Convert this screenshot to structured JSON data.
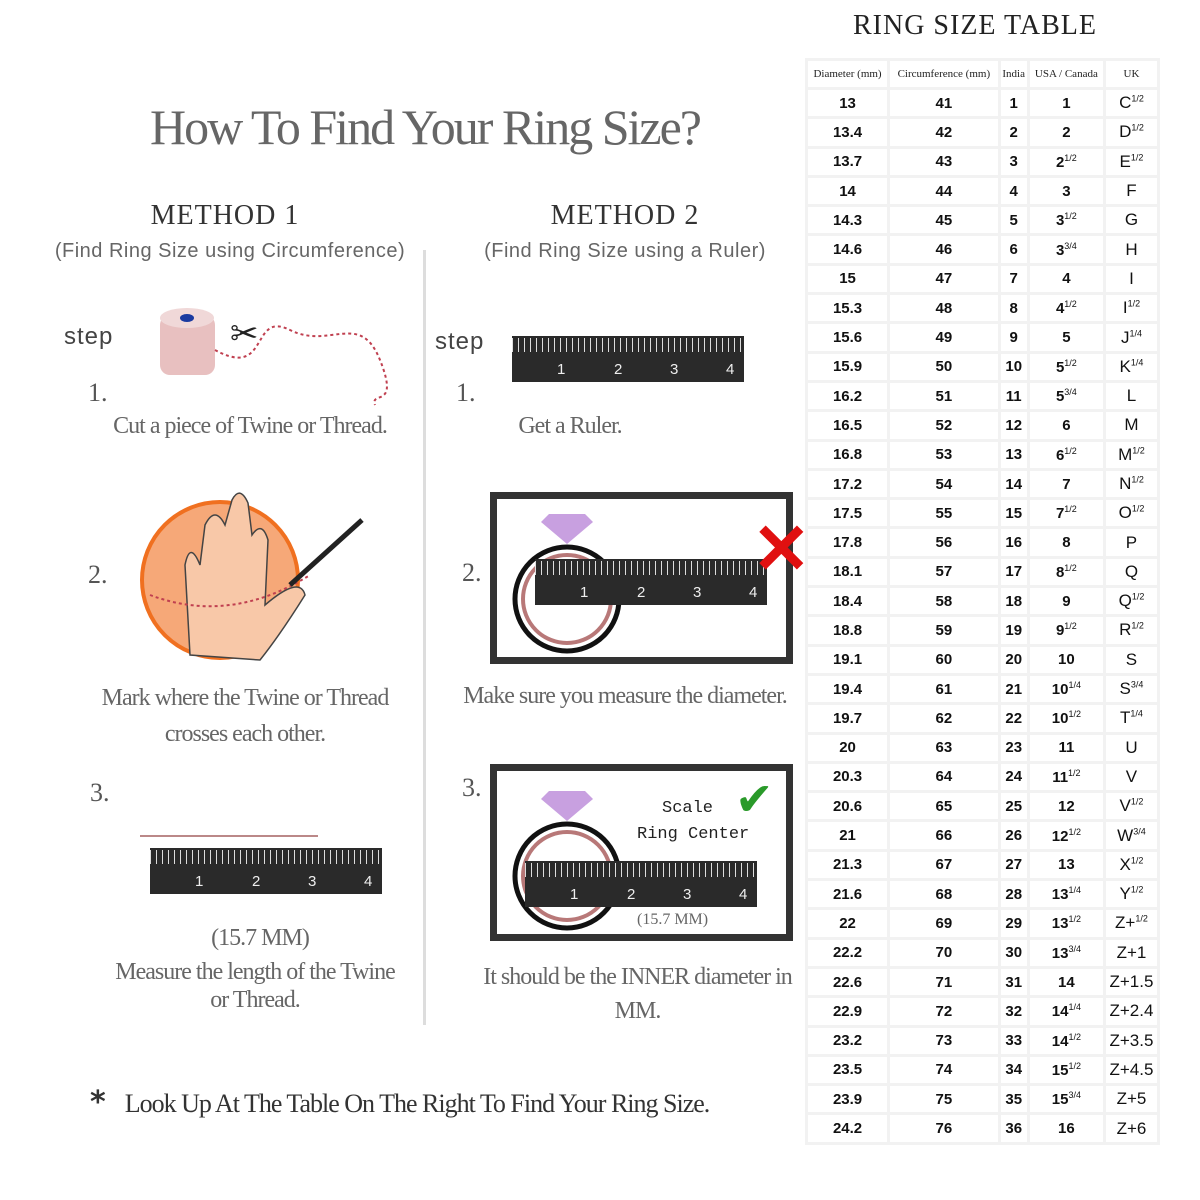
{
  "title": "How To Find Your Ring Size?",
  "method1": {
    "heading": "METHOD 1",
    "subheading": "(Find Ring Size using Circumference)",
    "step_label": "step",
    "steps": [
      {
        "num": "1.",
        "text": "Cut a piece of  Twine or Thread."
      },
      {
        "num": "2.",
        "text": "Mark where the Twine or Thread crosses each other."
      },
      {
        "num": "3.",
        "measure": "(15.7 MM)",
        "text": "Measure the length of the Twine or Thread."
      }
    ]
  },
  "method2": {
    "heading": "METHOD 2",
    "subheading": "(Find Ring Size using a Ruler)",
    "step_label": "step",
    "steps": [
      {
        "num": "1.",
        "text": "Get a Ruler."
      },
      {
        "num": "2.",
        "text": "Make sure you measure the diameter."
      },
      {
        "num": "3.",
        "scale_label": "Scale",
        "ring_center_label": "Ring Center",
        "measure": "(15.7 MM)",
        "text": "It should be the INNER diameter in MM."
      }
    ]
  },
  "ruler_labels": [
    "1",
    "2",
    "3",
    "4"
  ],
  "footer": {
    "bullet": "*",
    "text": "Look Up  At The Table On The Right To Find Your Ring Size."
  },
  "table": {
    "title": "RING SIZE TABLE",
    "headers": [
      "Diameter (mm)",
      "Circumference (mm)",
      "India",
      "USA / Canada",
      "UK"
    ],
    "rows": [
      [
        "13",
        "41",
        "1",
        "1",
        "",
        "C",
        "1/2"
      ],
      [
        "13.4",
        "42",
        "2",
        "2",
        "",
        "D",
        "1/2"
      ],
      [
        "13.7",
        "43",
        "3",
        "2",
        "1/2",
        "E",
        "1/2"
      ],
      [
        "14",
        "44",
        "4",
        "3",
        "",
        "F",
        ""
      ],
      [
        "14.3",
        "45",
        "5",
        "3",
        "1/2",
        "G",
        ""
      ],
      [
        "14.6",
        "46",
        "6",
        "3",
        "3/4",
        "H",
        ""
      ],
      [
        "15",
        "47",
        "7",
        "4",
        "",
        "I",
        ""
      ],
      [
        "15.3",
        "48",
        "8",
        "4",
        "1/2",
        "I",
        "1/2"
      ],
      [
        "15.6",
        "49",
        "9",
        "5",
        "",
        "J",
        "1/4"
      ],
      [
        "15.9",
        "50",
        "10",
        "5",
        "1/2",
        "K",
        "1/4"
      ],
      [
        "16.2",
        "51",
        "11",
        "5",
        "3/4",
        "L",
        ""
      ],
      [
        "16.5",
        "52",
        "12",
        "6",
        "",
        "M",
        ""
      ],
      [
        "16.8",
        "53",
        "13",
        "6",
        "1/2",
        "M",
        "1/2"
      ],
      [
        "17.2",
        "54",
        "14",
        "7",
        "",
        "N",
        "1/2"
      ],
      [
        "17.5",
        "55",
        "15",
        "7",
        "1/2",
        "O",
        "1/2"
      ],
      [
        "17.8",
        "56",
        "16",
        "8",
        "",
        "P",
        ""
      ],
      [
        "18.1",
        "57",
        "17",
        "8",
        "1/2",
        "Q",
        ""
      ],
      [
        "18.4",
        "58",
        "18",
        "9",
        "",
        "Q",
        "1/2"
      ],
      [
        "18.8",
        "59",
        "19",
        "9",
        "1/2",
        "R",
        "1/2"
      ],
      [
        "19.1",
        "60",
        "20",
        "10",
        "",
        "S",
        ""
      ],
      [
        "19.4",
        "61",
        "21",
        "10",
        "1/4",
        "S",
        "3/4"
      ],
      [
        "19.7",
        "62",
        "22",
        "10",
        "1/2",
        "T",
        "1/4"
      ],
      [
        "20",
        "63",
        "23",
        "11",
        "",
        "U",
        ""
      ],
      [
        "20.3",
        "64",
        "24",
        "11",
        "1/2",
        "V",
        ""
      ],
      [
        "20.6",
        "65",
        "25",
        "12",
        "",
        "V",
        "1/2"
      ],
      [
        "21",
        "66",
        "26",
        "12",
        "1/2",
        "W",
        "3/4"
      ],
      [
        "21.3",
        "67",
        "27",
        "13",
        "",
        "X",
        "1/2"
      ],
      [
        "21.6",
        "68",
        "28",
        "13",
        "1/4",
        "Y",
        "1/2"
      ],
      [
        "22",
        "69",
        "29",
        "13",
        "1/2",
        "Z+",
        "1/2"
      ],
      [
        "22.2",
        "70",
        "30",
        "13",
        "3/4",
        "Z+1",
        ""
      ],
      [
        "22.6",
        "71",
        "31",
        "14",
        "",
        "Z+1.5",
        ""
      ],
      [
        "22.9",
        "72",
        "32",
        "14",
        "1/4",
        "Z+2.4",
        ""
      ],
      [
        "23.2",
        "73",
        "33",
        "14",
        "1/2",
        "Z+3.5",
        ""
      ],
      [
        "23.5",
        "74",
        "34",
        "15",
        "1/2",
        "Z+4.5",
        ""
      ],
      [
        "23.9",
        "75",
        "35",
        "15",
        "3/4",
        "Z+5",
        ""
      ],
      [
        "24.2",
        "76",
        "36",
        "16",
        "",
        "Z+6",
        ""
      ]
    ]
  },
  "colors": {
    "accent_orange": "#f07020",
    "wrong_red": "#e01010",
    "correct_green": "#2a9a2a",
    "diamond_purple": "#c8a0e0",
    "ring_rose": "#b87878"
  }
}
